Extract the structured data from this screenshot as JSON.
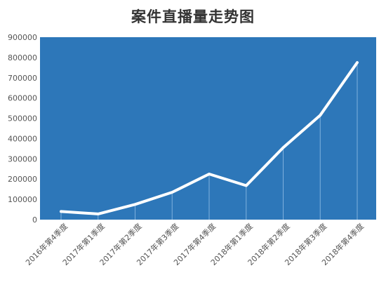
{
  "chart_data": {
    "type": "line",
    "title": "案件直播量走势图",
    "categories": [
      "2016年第4季度",
      "2017年第1季度",
      "2017年第2季度",
      "2017年第3季度",
      "2017年第4季度",
      "2018年第1季度",
      "2018年第2季度",
      "2018年第3季度",
      "2018年第4季度"
    ],
    "series": [
      {
        "values": [
          40000,
          28000,
          75000,
          135000,
          225000,
          168000,
          355000,
          515000,
          775000
        ]
      }
    ],
    "ylim": [
      0,
      900000
    ],
    "yticks": [
      "0",
      "100000",
      "200000",
      "300000",
      "400000",
      "500000",
      "600000",
      "700000",
      "800000",
      "900000"
    ],
    "xlabel": "",
    "ylabel": "",
    "grid": false,
    "colors": {
      "plot_background": "#2d77b9",
      "line": "#ffffff",
      "drop_line": "#7fb0dd"
    }
  }
}
